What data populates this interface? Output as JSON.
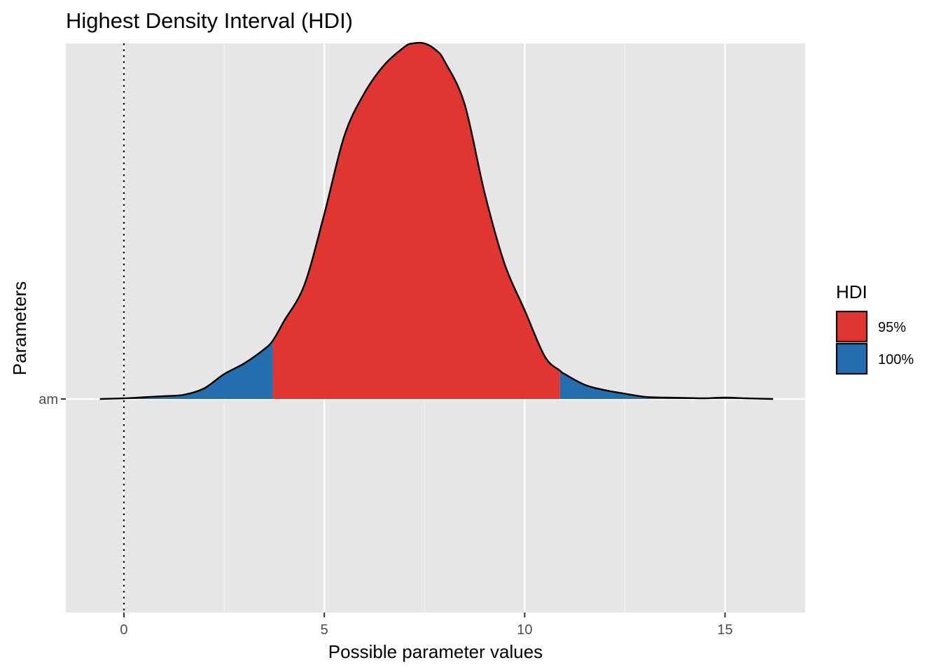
{
  "chart_data": {
    "type": "area",
    "title": "Highest Density Interval (HDI)",
    "xlabel": "Possible parameter values",
    "ylabel": "Parameters",
    "xlim": [
      -1.45,
      17.0
    ],
    "x_ticks": [
      0,
      5,
      10,
      15
    ],
    "x_minor_ticks": [
      2.5,
      7.5,
      12.5
    ],
    "y_categories": [
      "am"
    ],
    "reference_line": {
      "x": 0,
      "style": "dotted"
    },
    "grid": true,
    "legend": {
      "title": "HDI",
      "position": "right",
      "entries": [
        {
          "label": "95%",
          "color": "#E03530"
        },
        {
          "label": "100%",
          "color": "#236EAE"
        }
      ]
    },
    "hdi_interval": [
      3.72,
      10.88
    ],
    "density": {
      "x": [
        -0.6,
        0.0,
        0.5,
        1.0,
        1.5,
        2.0,
        2.5,
        3.0,
        3.5,
        3.72,
        4.0,
        4.5,
        5.0,
        5.5,
        6.0,
        6.5,
        7.0,
        7.2,
        7.5,
        7.8,
        8.0,
        8.5,
        9.0,
        9.5,
        10.0,
        10.5,
        10.88,
        11.0,
        11.5,
        12.0,
        12.5,
        13.0,
        13.5,
        14.0,
        14.5,
        15.0,
        15.5,
        16.2
      ],
      "y": [
        0.0,
        0.002,
        0.005,
        0.008,
        0.012,
        0.03,
        0.07,
        0.1,
        0.14,
        0.165,
        0.22,
        0.32,
        0.52,
        0.74,
        0.86,
        0.94,
        0.99,
        1.0,
        1.0,
        0.98,
        0.95,
        0.83,
        0.58,
        0.38,
        0.25,
        0.12,
        0.08,
        0.07,
        0.04,
        0.025,
        0.015,
        0.006,
        0.004,
        0.003,
        0.002,
        0.004,
        0.002,
        0.0
      ]
    }
  }
}
